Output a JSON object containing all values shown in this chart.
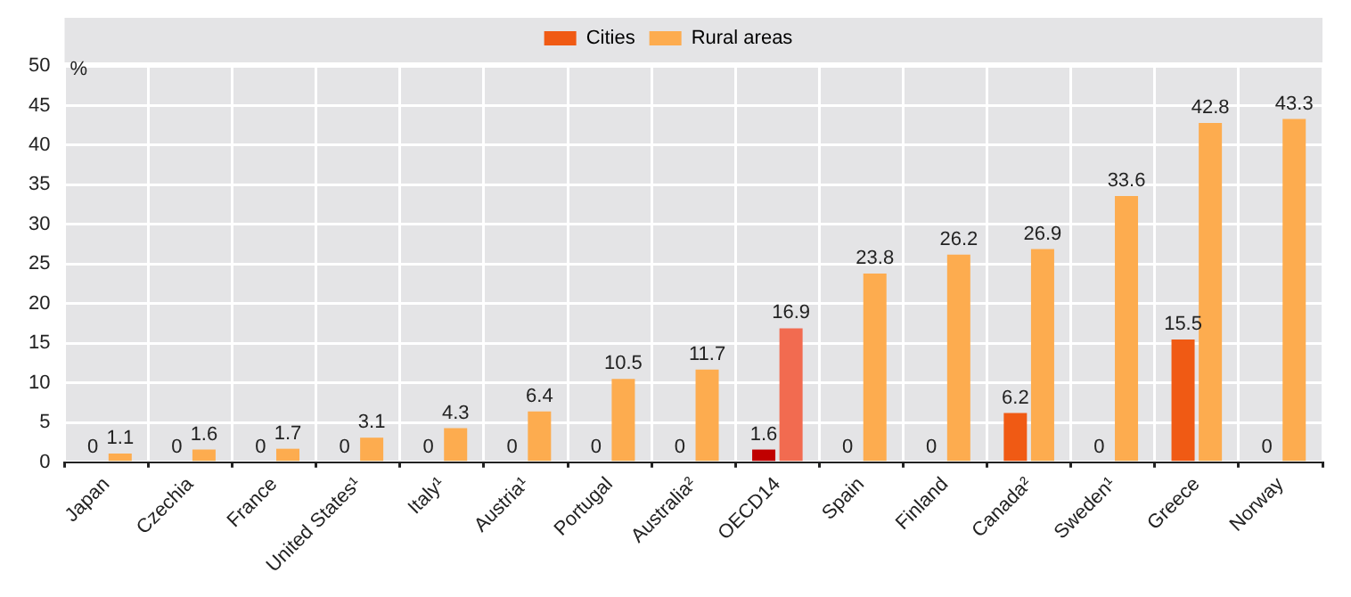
{
  "chart_data": {
    "type": "bar",
    "ylabel": "%",
    "categories": [
      "Japan",
      "Czechia",
      "France",
      "United States¹",
      "Italy¹",
      "Austria¹",
      "Portugal",
      "Australia²",
      "OECD14",
      "Spain",
      "Finland",
      "Canada²",
      "Sweden¹",
      "Greece",
      "Norway"
    ],
    "series": [
      {
        "name": "Cities",
        "color": "#f05a14",
        "colors": [
          "#f05a14",
          "#f05a14",
          "#f05a14",
          "#f05a14",
          "#f05a14",
          "#f05a14",
          "#f05a14",
          "#f05a14",
          "#c00000",
          "#f05a14",
          "#f05a14",
          "#f05a14",
          "#f05a14",
          "#f05a14",
          "#f05a14"
        ],
        "values": [
          0,
          0,
          0,
          0,
          0,
          0,
          0,
          0,
          1.6,
          0,
          0,
          6.2,
          0,
          15.5,
          0
        ]
      },
      {
        "name": "Rural areas",
        "color": "#fdac4f",
        "colors": [
          "#fdac4f",
          "#fdac4f",
          "#fdac4f",
          "#fdac4f",
          "#fdac4f",
          "#fdac4f",
          "#fdac4f",
          "#fdac4f",
          "#f26b50",
          "#fdac4f",
          "#fdac4f",
          "#fdac4f",
          "#fdac4f",
          "#fdac4f",
          "#fdac4f"
        ],
        "values": [
          1.1,
          1.6,
          1.7,
          3.1,
          4.3,
          6.4,
          10.5,
          11.7,
          16.9,
          23.8,
          26.2,
          26.9,
          33.6,
          42.8,
          43.3
        ]
      }
    ],
    "ylim": [
      0,
      50
    ],
    "yticks": [
      0,
      5,
      10,
      15,
      20,
      25,
      30,
      35,
      40,
      45,
      50
    ],
    "grid": true,
    "legend": "top",
    "data_labels": true
  }
}
